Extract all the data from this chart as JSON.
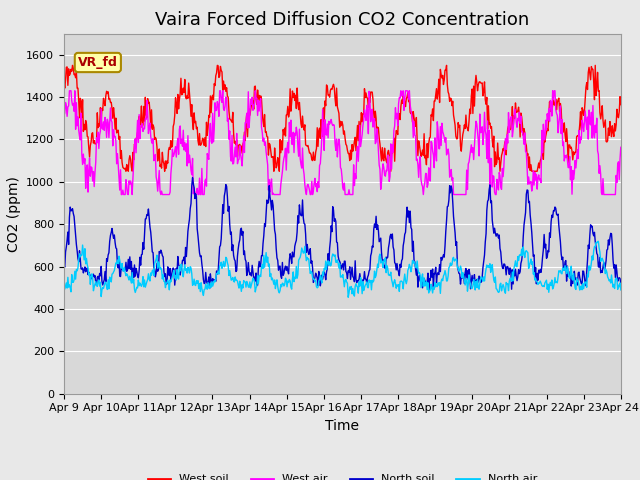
{
  "title": "Vaira Forced Diffusion CO2 Concentration",
  "xlabel": "Time",
  "ylabel": "CO2 (ppm)",
  "ylim": [
    0,
    1700
  ],
  "yticks": [
    0,
    200,
    400,
    600,
    800,
    1000,
    1200,
    1400,
    1600
  ],
  "xtick_labels": [
    "Apr 9",
    "Apr 10",
    "Apr 11",
    "Apr 12",
    "Apr 13",
    "Apr 14",
    "Apr 15",
    "Apr 16",
    "Apr 17",
    "Apr 18",
    "Apr 19",
    "Apr 20",
    "Apr 21",
    "Apr 22",
    "Apr 23",
    "Apr 24"
  ],
  "legend_label": "VR_fd",
  "series_colors": {
    "west_soil": "#ff0000",
    "west_air": "#ff00ff",
    "north_soil": "#0000cc",
    "north_air": "#00ccff"
  },
  "series_labels": {
    "west_soil": "West soil",
    "west_air": "West air",
    "north_soil": "North soil",
    "north_air": "North air"
  },
  "linewidth": 1.0,
  "background_color": "#e8e8e8",
  "plot_bg_color": "#d8d8d8",
  "title_fontsize": 13,
  "axis_fontsize": 10,
  "tick_fontsize": 8,
  "legend_box_color": "#ffffaa",
  "legend_box_edge": "#aa8800"
}
